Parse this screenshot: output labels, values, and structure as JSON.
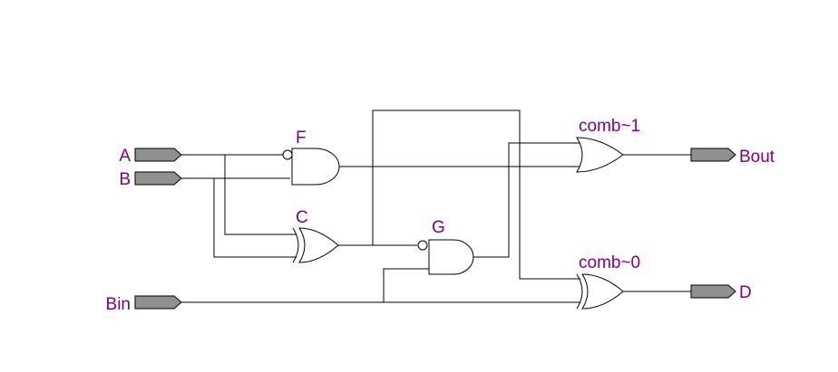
{
  "colors": {
    "label": "#800080",
    "wire": "#000000",
    "port_fill": "#909090",
    "background": "#ffffff"
  },
  "ports": {
    "a": "A",
    "b": "B",
    "bin": "Bin",
    "bout": "Bout",
    "d": "D"
  },
  "gates": {
    "f": "F",
    "c": "C",
    "g": "G",
    "comb1": "comb~1",
    "comb0": "comb~0"
  }
}
